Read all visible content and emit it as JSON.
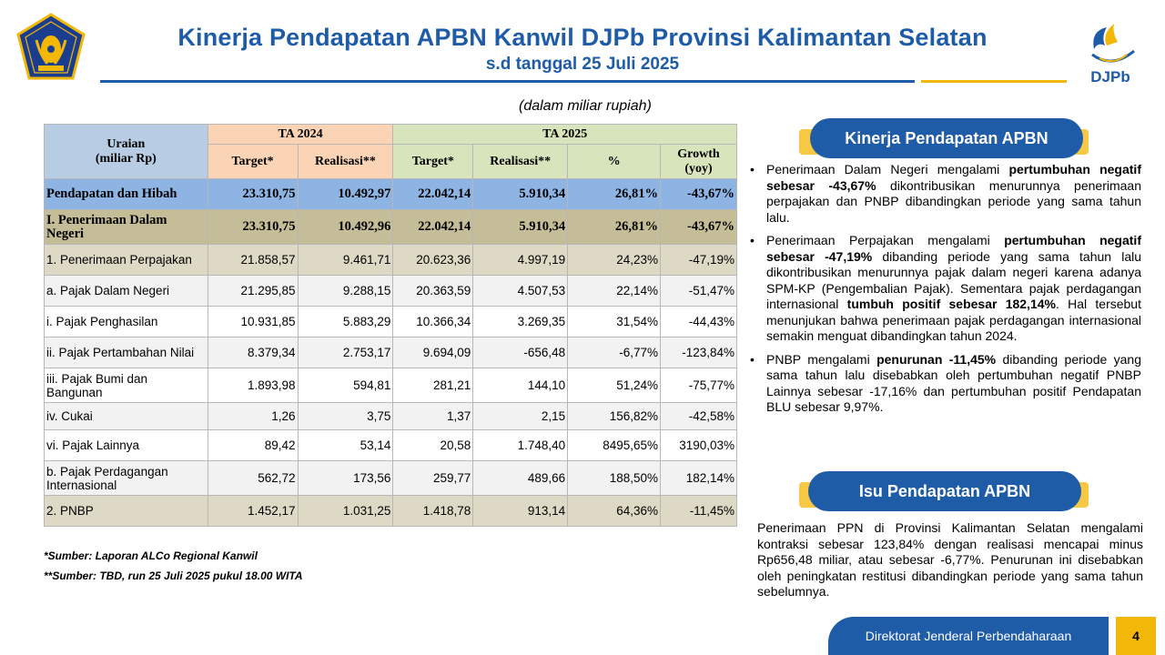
{
  "header": {
    "title": "Kinerja Pendapatan APBN Kanwil DJPb Provinsi Kalimantan Selatan",
    "subtitle": "s.d tanggal 25 Juli 2025",
    "logo_left": "kemenkeu-logo-icon",
    "logo_right_text": "DJPb"
  },
  "unit_note": "(dalam miliar rupiah)",
  "table": {
    "head": {
      "uraian_line1": "Uraian",
      "uraian_line2": "(miliar Rp)",
      "ta2024": "TA 2024",
      "ta2025": "TA 2025",
      "cols": [
        "Target*",
        "Realisasi**",
        "Target*",
        "Realisasi**",
        "%"
      ],
      "growth_line1": "Growth",
      "growth_line2": "(yoy)"
    },
    "rows": [
      {
        "label": "Pendapatan dan Hibah",
        "v": [
          "23.310,75",
          "10.492,97",
          "22.042,14",
          "5.910,34",
          "26,81%",
          "-43,67%"
        ]
      },
      {
        "label": "I. Penerimaan Dalam Negeri",
        "v": [
          "23.310,75",
          "10.492,96",
          "22.042,14",
          "5.910,34",
          "26,81%",
          "-43,67%"
        ]
      },
      {
        "label": "1. Penerimaan Perpajakan",
        "v": [
          "21.858,57",
          "9.461,71",
          "20.623,36",
          "4.997,19",
          "24,23%",
          "-47,19%"
        ]
      },
      {
        "label": "a. Pajak Dalam Negeri",
        "v": [
          "21.295,85",
          "9.288,15",
          "20.363,59",
          "4.507,53",
          "22,14%",
          "-51,47%"
        ]
      },
      {
        "label": "i. Pajak Penghasilan",
        "v": [
          "10.931,85",
          "5.883,29",
          "10.366,34",
          "3.269,35",
          "31,54%",
          "-44,43%"
        ]
      },
      {
        "label": "ii.  Pajak Pertambahan Nilai",
        "v": [
          "8.379,34",
          "2.753,17",
          "9.694,09",
          "-656,48",
          "-6,77%",
          "-123,84%"
        ]
      },
      {
        "label": "iii.  Pajak Bumi dan Bangunan",
        "v": [
          "1.893,98",
          "594,81",
          "281,21",
          "144,10",
          "51,24%",
          "-75,77%"
        ]
      },
      {
        "label": "iv. Cukai",
        "v": [
          "1,26",
          "3,75",
          "1,37",
          "2,15",
          "156,82%",
          "-42,58%"
        ]
      },
      {
        "label": "vi. Pajak Lainnya",
        "v": [
          "89,42",
          "53,14",
          "20,58",
          "1.748,40",
          "8495,65%",
          "3190,03%"
        ]
      },
      {
        "label": "b. Pajak Perdagangan Internasional",
        "v": [
          "562,72",
          "173,56",
          "259,77",
          "489,66",
          "188,50%",
          "182,14%"
        ]
      },
      {
        "label": "2. PNBP",
        "v": [
          "1.452,17",
          "1.031,25",
          "1.418,78",
          "913,14",
          "64,36%",
          "-11,45%"
        ]
      }
    ]
  },
  "sources": {
    "s1": "*Sumber: Laporan ALCo Regional Kanwil",
    "s2": "**Sumber: TBD, run 25 Juli 2025 pukul 18.00 WITA"
  },
  "panel1": {
    "title": "Kinerja Pendapatan APBN",
    "b1": {
      "t1": "Penerimaan Dalam Negeri mengalami ",
      "bold": "pertumbuhan negatif sebesar -43,67%",
      "t2": " dikontribusikan menurunnya penerimaan perpajakan dan PNBP dibandingkan periode yang sama tahun lalu."
    },
    "b2": {
      "t1": "Penerimaan Perpajakan mengalami ",
      "bold1": "pertumbuhan negatif sebesar -47,19%",
      "t2": " dibanding periode yang sama tahun lalu dikontribusikan menurunnya pajak dalam negeri karena adanya SPM-KP (Pengembalian Pajak). Sementara pajak perdagangan internasional ",
      "bold2": "tumbuh positif sebesar 182,14%",
      "t3": ". Hal tersebut menunjukan bahwa penerimaan pajak perdagangan internasional semakin menguat dibandingkan tahun 2024."
    },
    "b3": {
      "t1": "PNBP mengalami ",
      "bold": "penurunan -11,45%",
      "t2": " dibanding periode yang sama tahun lalu disebabkan oleh pertumbuhan negatif PNBP Lainnya sebesar -17,16% dan pertumbuhan positif Pendapatan BLU sebesar 9,97%."
    }
  },
  "panel2": {
    "title": "Isu Pendapatan APBN",
    "text": "Penerimaan PPN di Provinsi Kalimantan Selatan mengalami kontraksi sebesar 123,84% dengan realisasi mencapai minus Rp656,48 miliar, atau sebesar -6,77%. Penurunan ini disebabkan oleh peningkatan restitusi dibandingkan periode yang sama tahun sebelumnya."
  },
  "footer": {
    "org": "Direktorat Jenderal Perbendaharaan",
    "page": "4"
  },
  "colors": {
    "brand_blue": "#1f5ca8",
    "gold": "#f2b707",
    "row_total": "#8eb4e3",
    "row_pdn": "#c4bd97"
  }
}
